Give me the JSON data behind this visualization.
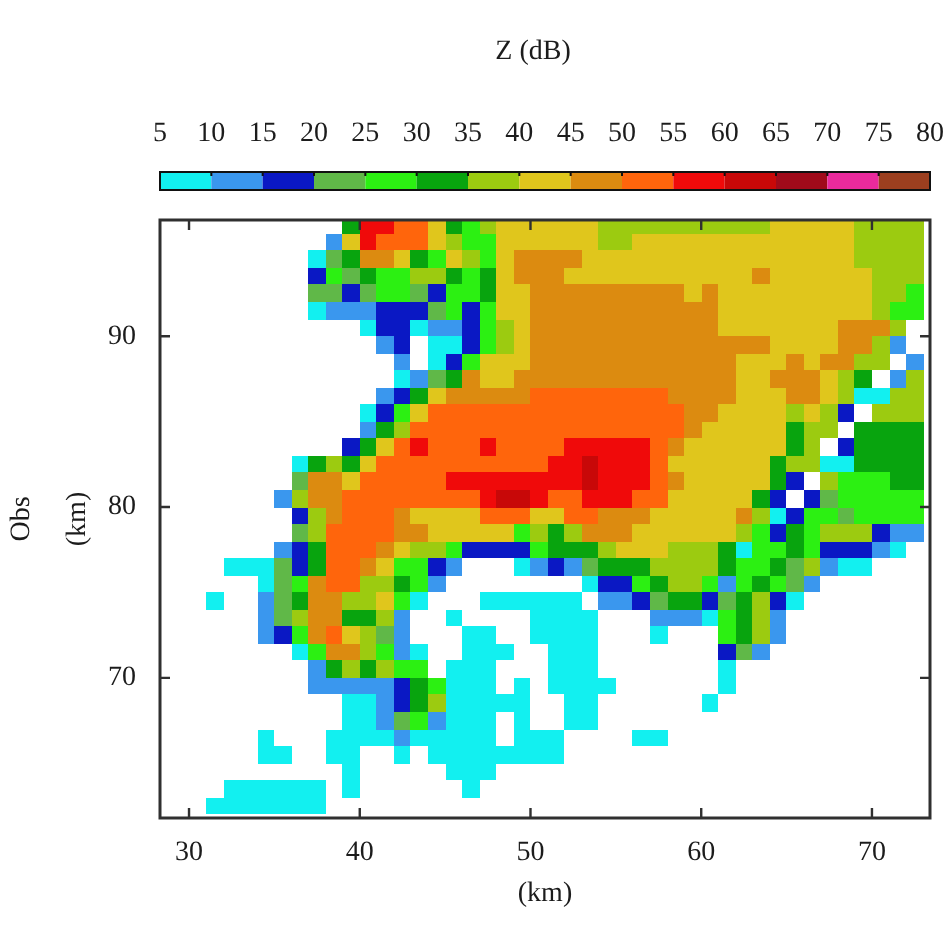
{
  "chart_data": {
    "type": "heatmap",
    "clabel": "Z (dB)",
    "xlabel": "(km)",
    "ylabel": "Obs (km)",
    "xlim": [
      28.3,
      73.4
    ],
    "xticks": [
      30,
      40,
      50,
      60,
      70
    ],
    "ylim": [
      61.8,
      96.8
    ],
    "yticks": [
      70,
      80,
      90
    ],
    "clim": [
      5,
      80
    ],
    "cticks": [
      5,
      10,
      15,
      20,
      25,
      30,
      35,
      40,
      45,
      50,
      55,
      60,
      65,
      70,
      75,
      80
    ],
    "x": [
      31.5,
      32.5,
      33.5,
      34.5,
      35.5,
      36.5,
      37.5,
      38.5,
      39.5,
      40.5,
      41.5,
      42.5,
      43.5,
      44.5,
      45.5,
      46.5,
      47.5,
      48.5,
      49.5,
      50.5,
      51.5,
      52.5,
      53.5,
      54.5,
      55.5,
      56.5,
      57.5,
      58.5,
      59.5,
      60.5,
      61.5,
      62.5,
      63.5,
      64.5,
      65.5,
      66.5,
      67.5,
      68.5,
      69.5,
      70.5,
      71.5,
      72.5
    ],
    "y": [
      96.5,
      95.5,
      94.5,
      93.5,
      92.5,
      91.5,
      90.5,
      89.5,
      88.5,
      87.5,
      86.5,
      85.5,
      84.5,
      83.5,
      82.5,
      81.5,
      80.5,
      79.5,
      78.5,
      77.5,
      76.5,
      75.5,
      74.5,
      73.5,
      72.5,
      71.5,
      70.5,
      69.5,
      68.5,
      67.5,
      66.5,
      65.5,
      64.5,
      63.5,
      62.5
    ],
    "cells": [
      [
        null,
        null,
        null,
        null,
        null,
        null,
        null,
        null,
        32.5,
        57.5,
        57.5,
        52.5,
        52.5,
        42.5,
        32.5,
        27.5,
        37.5,
        42.5,
        42.5,
        42.5,
        42.5,
        42.5,
        42.5,
        37.5,
        37.5,
        37.5,
        37.5,
        37.5,
        37.5,
        37.5,
        37.5,
        37.5,
        37.5,
        42.5,
        42.5,
        42.5,
        42.5,
        42.5,
        37.5,
        37.5,
        37.5,
        37.5
      ],
      [
        null,
        null,
        null,
        null,
        null,
        null,
        null,
        12.5,
        42.5,
        57.5,
        52.5,
        52.5,
        52.5,
        42.5,
        37.5,
        27.5,
        27.5,
        42.5,
        42.5,
        42.5,
        42.5,
        42.5,
        42.5,
        37.5,
        37.5,
        42.5,
        42.5,
        42.5,
        42.5,
        42.5,
        42.5,
        42.5,
        42.5,
        42.5,
        42.5,
        42.5,
        42.5,
        42.5,
        37.5,
        37.5,
        37.5,
        37.5
      ],
      [
        null,
        null,
        null,
        null,
        null,
        null,
        7.5,
        22.5,
        32.5,
        47.5,
        47.5,
        42.5,
        32.5,
        27.5,
        42.5,
        37.5,
        27.5,
        42.5,
        47.5,
        47.5,
        47.5,
        47.5,
        42.5,
        42.5,
        42.5,
        42.5,
        42.5,
        42.5,
        42.5,
        42.5,
        42.5,
        42.5,
        42.5,
        42.5,
        42.5,
        42.5,
        42.5,
        42.5,
        37.5,
        37.5,
        37.5,
        37.5
      ],
      [
        null,
        null,
        null,
        null,
        null,
        null,
        17.5,
        27.5,
        22.5,
        32.5,
        27.5,
        27.5,
        37.5,
        37.5,
        32.5,
        27.5,
        32.5,
        42.5,
        47.5,
        47.5,
        47.5,
        42.5,
        42.5,
        42.5,
        42.5,
        42.5,
        42.5,
        42.5,
        42.5,
        42.5,
        42.5,
        42.5,
        47.5,
        42.5,
        42.5,
        42.5,
        42.5,
        42.5,
        42.5,
        37.5,
        37.5,
        37.5
      ],
      [
        null,
        null,
        null,
        null,
        null,
        null,
        22.5,
        22.5,
        17.5,
        22.5,
        27.5,
        27.5,
        22.5,
        17.5,
        27.5,
        27.5,
        32.5,
        42.5,
        42.5,
        47.5,
        47.5,
        47.5,
        47.5,
        47.5,
        47.5,
        47.5,
        47.5,
        47.5,
        42.5,
        47.5,
        42.5,
        42.5,
        42.5,
        42.5,
        42.5,
        42.5,
        42.5,
        42.5,
        42.5,
        37.5,
        37.5,
        27.5
      ],
      [
        null,
        null,
        null,
        null,
        null,
        null,
        7.5,
        12.5,
        12.5,
        12.5,
        17.5,
        17.5,
        17.5,
        22.5,
        27.5,
        17.5,
        27.5,
        42.5,
        42.5,
        47.5,
        47.5,
        47.5,
        47.5,
        47.5,
        47.5,
        47.5,
        47.5,
        47.5,
        47.5,
        47.5,
        42.5,
        42.5,
        42.5,
        42.5,
        42.5,
        42.5,
        42.5,
        42.5,
        42.5,
        37.5,
        27.5,
        27.5
      ],
      [
        null,
        null,
        null,
        null,
        null,
        null,
        null,
        null,
        null,
        7.5,
        17.5,
        17.5,
        7.5,
        12.5,
        12.5,
        17.5,
        27.5,
        37.5,
        42.5,
        47.5,
        47.5,
        47.5,
        47.5,
        47.5,
        47.5,
        47.5,
        47.5,
        47.5,
        47.5,
        47.5,
        42.5,
        42.5,
        42.5,
        42.5,
        42.5,
        42.5,
        42.5,
        47.5,
        47.5,
        47.5,
        37.5,
        null
      ],
      [
        null,
        null,
        null,
        null,
        null,
        null,
        null,
        null,
        null,
        null,
        12.5,
        17.5,
        null,
        7.5,
        7.5,
        17.5,
        27.5,
        37.5,
        42.5,
        47.5,
        47.5,
        47.5,
        47.5,
        47.5,
        47.5,
        47.5,
        47.5,
        47.5,
        47.5,
        47.5,
        47.5,
        47.5,
        47.5,
        42.5,
        42.5,
        42.5,
        42.5,
        47.5,
        47.5,
        37.5,
        12.5,
        null
      ],
      [
        null,
        null,
        null,
        null,
        null,
        null,
        null,
        null,
        null,
        null,
        null,
        12.5,
        null,
        7.5,
        17.5,
        27.5,
        42.5,
        42.5,
        42.5,
        47.5,
        47.5,
        47.5,
        47.5,
        47.5,
        47.5,
        47.5,
        47.5,
        47.5,
        47.5,
        47.5,
        47.5,
        42.5,
        42.5,
        42.5,
        47.5,
        42.5,
        47.5,
        47.5,
        37.5,
        37.5,
        null,
        12.5
      ],
      [
        null,
        null,
        null,
        null,
        null,
        null,
        null,
        null,
        null,
        null,
        null,
        7.5,
        12.5,
        22.5,
        32.5,
        47.5,
        42.5,
        42.5,
        47.5,
        47.5,
        47.5,
        47.5,
        47.5,
        47.5,
        47.5,
        47.5,
        47.5,
        47.5,
        47.5,
        47.5,
        47.5,
        42.5,
        42.5,
        47.5,
        47.5,
        47.5,
        42.5,
        37.5,
        32.5,
        null,
        12.5,
        37.5
      ],
      [
        null,
        null,
        null,
        null,
        null,
        null,
        null,
        null,
        null,
        null,
        12.5,
        17.5,
        32.5,
        42.5,
        47.5,
        47.5,
        47.5,
        47.5,
        47.5,
        52.5,
        52.5,
        52.5,
        52.5,
        52.5,
        52.5,
        52.5,
        52.5,
        47.5,
        47.5,
        47.5,
        47.5,
        42.5,
        42.5,
        42.5,
        47.5,
        47.5,
        42.5,
        37.5,
        7.5,
        7.5,
        37.5,
        37.5
      ],
      [
        null,
        null,
        null,
        null,
        null,
        null,
        null,
        null,
        null,
        7.5,
        17.5,
        27.5,
        42.5,
        52.5,
        52.5,
        52.5,
        52.5,
        52.5,
        52.5,
        52.5,
        52.5,
        52.5,
        52.5,
        52.5,
        52.5,
        52.5,
        52.5,
        52.5,
        47.5,
        47.5,
        42.5,
        42.5,
        42.5,
        42.5,
        37.5,
        42.5,
        37.5,
        17.5,
        null,
        37.5,
        37.5,
        37.5
      ],
      [
        null,
        null,
        null,
        null,
        null,
        null,
        null,
        null,
        null,
        12.5,
        32.5,
        37.5,
        52.5,
        52.5,
        52.5,
        52.5,
        52.5,
        52.5,
        52.5,
        52.5,
        52.5,
        52.5,
        52.5,
        52.5,
        52.5,
        52.5,
        52.5,
        52.5,
        47.5,
        42.5,
        42.5,
        42.5,
        42.5,
        42.5,
        32.5,
        37.5,
        37.5,
        null,
        32.5,
        32.5,
        32.5,
        32.5
      ],
      [
        null,
        null,
        null,
        null,
        null,
        null,
        null,
        null,
        17.5,
        32.5,
        42.5,
        52.5,
        57.5,
        52.5,
        52.5,
        52.5,
        57.5,
        52.5,
        52.5,
        52.5,
        52.5,
        57.5,
        57.5,
        57.5,
        57.5,
        57.5,
        52.5,
        47.5,
        42.5,
        42.5,
        42.5,
        42.5,
        42.5,
        42.5,
        32.5,
        37.5,
        null,
        17.5,
        32.5,
        32.5,
        32.5,
        32.5
      ],
      [
        null,
        null,
        null,
        null,
        null,
        7.5,
        32.5,
        37.5,
        32.5,
        42.5,
        52.5,
        52.5,
        52.5,
        52.5,
        52.5,
        52.5,
        52.5,
        52.5,
        52.5,
        52.5,
        57.5,
        57.5,
        62.5,
        57.5,
        57.5,
        57.5,
        52.5,
        42.5,
        42.5,
        42.5,
        42.5,
        42.5,
        42.5,
        32.5,
        37.5,
        37.5,
        7.5,
        7.5,
        32.5,
        32.5,
        32.5,
        32.5
      ],
      [
        null,
        null,
        null,
        null,
        null,
        22.5,
        47.5,
        47.5,
        42.5,
        52.5,
        52.5,
        52.5,
        52.5,
        52.5,
        57.5,
        57.5,
        57.5,
        57.5,
        57.5,
        57.5,
        57.5,
        57.5,
        62.5,
        57.5,
        57.5,
        57.5,
        52.5,
        47.5,
        42.5,
        42.5,
        42.5,
        42.5,
        42.5,
        32.5,
        17.5,
        null,
        37.5,
        27.5,
        27.5,
        27.5,
        32.5,
        32.5
      ],
      [
        null,
        null,
        null,
        null,
        12.5,
        37.5,
        47.5,
        47.5,
        52.5,
        52.5,
        52.5,
        52.5,
        52.5,
        52.5,
        52.5,
        52.5,
        57.5,
        62.5,
        62.5,
        57.5,
        52.5,
        52.5,
        57.5,
        57.5,
        57.5,
        52.5,
        52.5,
        42.5,
        42.5,
        42.5,
        42.5,
        42.5,
        32.5,
        17.5,
        null,
        17.5,
        22.5,
        27.5,
        27.5,
        27.5,
        27.5,
        27.5
      ],
      [
        null,
        null,
        null,
        null,
        null,
        17.5,
        37.5,
        47.5,
        52.5,
        52.5,
        52.5,
        47.5,
        42.5,
        42.5,
        42.5,
        42.5,
        52.5,
        52.5,
        52.5,
        42.5,
        42.5,
        52.5,
        52.5,
        47.5,
        47.5,
        47.5,
        42.5,
        42.5,
        42.5,
        42.5,
        42.5,
        47.5,
        37.5,
        7.5,
        17.5,
        27.5,
        27.5,
        22.5,
        27.5,
        27.5,
        27.5,
        27.5
      ],
      [
        null,
        null,
        null,
        null,
        null,
        22.5,
        37.5,
        52.5,
        52.5,
        52.5,
        52.5,
        47.5,
        47.5,
        42.5,
        42.5,
        42.5,
        42.5,
        42.5,
        27.5,
        37.5,
        32.5,
        37.5,
        47.5,
        47.5,
        47.5,
        42.5,
        42.5,
        42.5,
        42.5,
        42.5,
        42.5,
        37.5,
        27.5,
        17.5,
        32.5,
        27.5,
        37.5,
        37.5,
        37.5,
        17.5,
        12.5,
        12.5
      ],
      [
        null,
        null,
        null,
        null,
        12.5,
        17.5,
        32.5,
        52.5,
        52.5,
        52.5,
        47.5,
        42.5,
        37.5,
        37.5,
        27.5,
        17.5,
        17.5,
        17.5,
        17.5,
        27.5,
        32.5,
        32.5,
        32.5,
        37.5,
        42.5,
        42.5,
        42.5,
        37.5,
        37.5,
        37.5,
        32.5,
        7.5,
        27.5,
        27.5,
        32.5,
        27.5,
        17.5,
        17.5,
        17.5,
        12.5,
        7.5,
        null
      ],
      [
        null,
        7.5,
        7.5,
        7.5,
        22.5,
        17.5,
        32.5,
        52.5,
        52.5,
        47.5,
        42.5,
        27.5,
        27.5,
        17.5,
        12.5,
        null,
        null,
        null,
        7.5,
        12.5,
        17.5,
        12.5,
        22.5,
        32.5,
        32.5,
        32.5,
        37.5,
        37.5,
        37.5,
        37.5,
        32.5,
        27.5,
        27.5,
        32.5,
        22.5,
        37.5,
        12.5,
        7.5,
        7.5,
        null,
        null,
        null
      ],
      [
        null,
        null,
        null,
        7.5,
        22.5,
        27.5,
        47.5,
        52.5,
        52.5,
        37.5,
        37.5,
        32.5,
        27.5,
        12.5,
        null,
        null,
        null,
        null,
        null,
        null,
        null,
        null,
        7.5,
        17.5,
        17.5,
        27.5,
        32.5,
        37.5,
        37.5,
        27.5,
        12.5,
        27.5,
        32.5,
        27.5,
        22.5,
        12.5,
        null,
        null,
        null,
        null,
        null,
        null
      ],
      [
        7.5,
        null,
        null,
        12.5,
        22.5,
        32.5,
        47.5,
        47.5,
        37.5,
        37.5,
        42.5,
        27.5,
        7.5,
        null,
        null,
        null,
        7.5,
        7.5,
        7.5,
        7.5,
        7.5,
        7.5,
        null,
        12.5,
        12.5,
        17.5,
        22.5,
        32.5,
        32.5,
        17.5,
        22.5,
        32.5,
        37.5,
        17.5,
        7.5,
        null,
        null,
        null,
        null,
        null,
        null,
        null
      ],
      [
        null,
        null,
        null,
        12.5,
        22.5,
        37.5,
        47.5,
        47.5,
        32.5,
        32.5,
        37.5,
        12.5,
        null,
        null,
        7.5,
        null,
        null,
        null,
        null,
        7.5,
        7.5,
        7.5,
        7.5,
        null,
        null,
        null,
        12.5,
        12.5,
        12.5,
        7.5,
        27.5,
        32.5,
        37.5,
        12.5,
        null,
        null,
        null,
        null,
        null,
        null,
        null,
        null
      ],
      [
        null,
        null,
        null,
        12.5,
        17.5,
        27.5,
        47.5,
        52.5,
        42.5,
        37.5,
        22.5,
        12.5,
        null,
        null,
        null,
        7.5,
        7.5,
        null,
        null,
        7.5,
        7.5,
        7.5,
        7.5,
        null,
        null,
        null,
        7.5,
        null,
        null,
        null,
        27.5,
        32.5,
        37.5,
        12.5,
        null,
        null,
        null,
        null,
        null,
        null,
        null,
        null
      ],
      [
        null,
        null,
        null,
        null,
        null,
        7.5,
        27.5,
        47.5,
        47.5,
        37.5,
        27.5,
        12.5,
        7.5,
        null,
        null,
        7.5,
        7.5,
        7.5,
        null,
        null,
        7.5,
        7.5,
        7.5,
        null,
        null,
        null,
        null,
        null,
        null,
        null,
        17.5,
        22.5,
        12.5,
        null,
        null,
        null,
        null,
        null,
        null,
        null,
        null,
        null
      ],
      [
        null,
        null,
        null,
        null,
        null,
        null,
        12.5,
        32.5,
        37.5,
        32.5,
        37.5,
        27.5,
        27.5,
        null,
        7.5,
        7.5,
        7.5,
        null,
        null,
        null,
        7.5,
        7.5,
        7.5,
        null,
        null,
        null,
        null,
        null,
        null,
        null,
        7.5,
        null,
        null,
        null,
        null,
        null,
        null,
        null,
        null,
        null,
        null,
        null
      ],
      [
        null,
        null,
        null,
        null,
        null,
        null,
        12.5,
        12.5,
        12.5,
        12.5,
        12.5,
        17.5,
        32.5,
        27.5,
        7.5,
        7.5,
        7.5,
        null,
        7.5,
        null,
        7.5,
        7.5,
        7.5,
        7.5,
        null,
        null,
        null,
        null,
        null,
        null,
        7.5,
        null,
        null,
        null,
        null,
        null,
        null,
        null,
        null,
        null,
        null,
        null
      ],
      [
        null,
        null,
        null,
        null,
        null,
        null,
        null,
        null,
        7.5,
        7.5,
        12.5,
        17.5,
        32.5,
        37.5,
        7.5,
        7.5,
        7.5,
        7.5,
        7.5,
        null,
        null,
        7.5,
        7.5,
        null,
        null,
        null,
        null,
        null,
        null,
        7.5,
        null,
        null,
        null,
        null,
        null,
        null,
        null,
        null,
        null,
        null,
        null,
        null
      ],
      [
        null,
        null,
        null,
        null,
        null,
        null,
        null,
        null,
        7.5,
        7.5,
        12.5,
        22.5,
        27.5,
        12.5,
        7.5,
        7.5,
        7.5,
        null,
        7.5,
        null,
        null,
        7.5,
        7.5,
        null,
        null,
        null,
        null,
        null,
        null,
        null,
        null,
        null,
        null,
        null,
        null,
        null,
        null,
        null,
        null,
        null,
        null,
        null
      ],
      [
        null,
        null,
        null,
        7.5,
        null,
        null,
        null,
        7.5,
        7.5,
        7.5,
        7.5,
        12.5,
        7.5,
        7.5,
        7.5,
        7.5,
        7.5,
        null,
        7.5,
        7.5,
        7.5,
        null,
        null,
        null,
        null,
        7.5,
        7.5,
        null,
        null,
        null,
        null,
        null,
        null,
        null,
        null,
        null,
        null,
        null,
        null,
        null,
        null,
        null
      ],
      [
        null,
        null,
        null,
        7.5,
        7.5,
        null,
        null,
        7.5,
        7.5,
        null,
        null,
        7.5,
        null,
        7.5,
        7.5,
        7.5,
        7.5,
        7.5,
        7.5,
        7.5,
        7.5,
        null,
        null,
        null,
        null,
        null,
        null,
        null,
        null,
        null,
        null,
        null,
        null,
        null,
        null,
        null,
        null,
        null,
        null,
        null,
        null,
        null
      ],
      [
        null,
        null,
        null,
        null,
        null,
        null,
        null,
        null,
        7.5,
        null,
        null,
        null,
        null,
        null,
        7.5,
        7.5,
        7.5,
        null,
        null,
        null,
        null,
        null,
        null,
        null,
        null,
        null,
        null,
        null,
        null,
        null,
        null,
        null,
        null,
        null,
        null,
        null,
        null,
        null,
        null,
        null,
        null,
        null
      ],
      [
        null,
        7.5,
        7.5,
        7.5,
        7.5,
        7.5,
        7.5,
        null,
        7.5,
        null,
        null,
        null,
        null,
        null,
        null,
        7.5,
        null,
        null,
        null,
        null,
        null,
        null,
        null,
        null,
        null,
        null,
        null,
        null,
        null,
        null,
        null,
        null,
        null,
        null,
        null,
        null,
        null,
        null,
        null,
        null,
        null,
        null
      ],
      [
        7.5,
        7.5,
        7.5,
        7.5,
        7.5,
        7.5,
        7.5,
        null,
        null,
        null,
        null,
        null,
        null,
        null,
        null,
        null,
        null,
        null,
        null,
        null,
        null,
        null,
        null,
        null,
        null,
        null,
        null,
        null,
        null,
        null,
        null,
        null,
        null,
        null,
        null,
        null,
        null,
        null,
        null,
        null,
        null,
        null
      ]
    ]
  }
}
